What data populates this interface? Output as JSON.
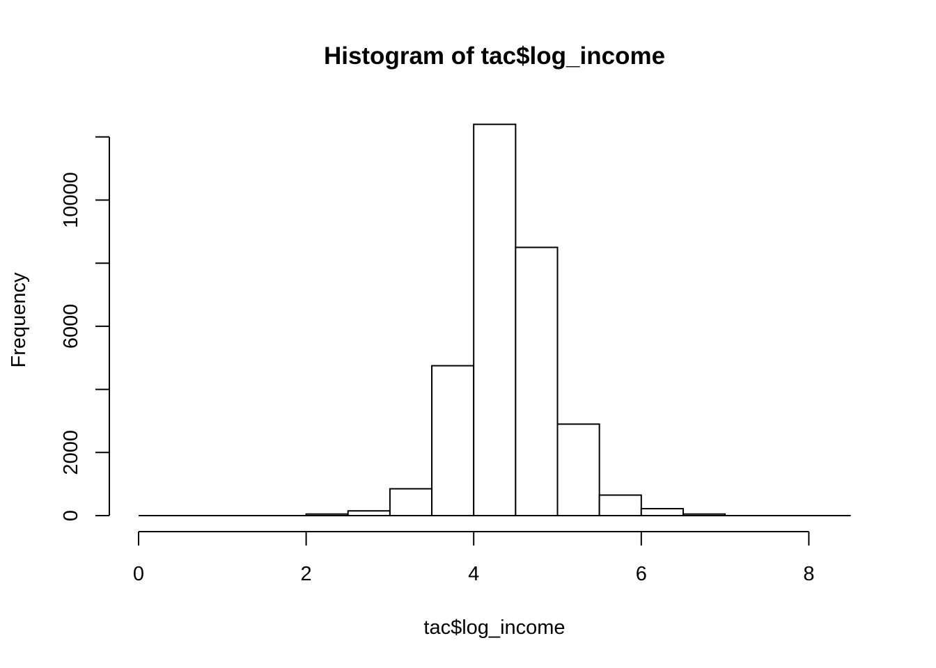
{
  "chart_data": {
    "type": "bar",
    "title": "Histogram of tac$log_income",
    "xlabel": "tac$log_income",
    "ylabel": "Frequency",
    "xlim": [
      0,
      8.5
    ],
    "ylim": [
      0,
      12000
    ],
    "x_ticks": [
      0,
      2,
      4,
      6,
      8
    ],
    "y_ticks": [
      0,
      2000,
      6000,
      10000
    ],
    "y_tick_marks": [
      0,
      2000,
      4000,
      6000,
      8000,
      10000,
      12000
    ],
    "bins": [
      {
        "start": 0.0,
        "end": 0.5,
        "count": 0
      },
      {
        "start": 0.5,
        "end": 1.0,
        "count": 0
      },
      {
        "start": 1.0,
        "end": 1.5,
        "count": 0
      },
      {
        "start": 1.5,
        "end": 2.0,
        "count": 0
      },
      {
        "start": 2.0,
        "end": 2.5,
        "count": 50
      },
      {
        "start": 2.5,
        "end": 3.0,
        "count": 150
      },
      {
        "start": 3.0,
        "end": 3.5,
        "count": 850
      },
      {
        "start": 3.5,
        "end": 4.0,
        "count": 4750
      },
      {
        "start": 4.0,
        "end": 4.5,
        "count": 12400
      },
      {
        "start": 4.5,
        "end": 5.0,
        "count": 8500
      },
      {
        "start": 5.0,
        "end": 5.5,
        "count": 2900
      },
      {
        "start": 5.5,
        "end": 6.0,
        "count": 650
      },
      {
        "start": 6.0,
        "end": 6.5,
        "count": 220
      },
      {
        "start": 6.5,
        "end": 7.0,
        "count": 50
      },
      {
        "start": 7.0,
        "end": 7.5,
        "count": 0
      },
      {
        "start": 7.5,
        "end": 8.0,
        "count": 0
      },
      {
        "start": 8.0,
        "end": 8.5,
        "count": 0
      }
    ],
    "grid": false,
    "colors": {
      "bar_fill": "#ffffff",
      "bar_stroke": "#000000"
    }
  }
}
